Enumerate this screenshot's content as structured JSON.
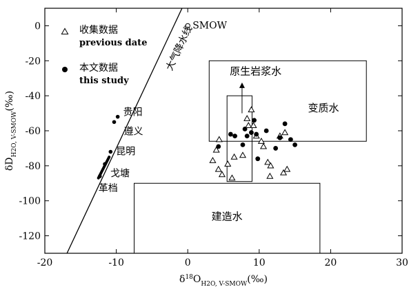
{
  "chart_data": {
    "type": "scatter",
    "xlim": [
      -20,
      30
    ],
    "ylim": [
      -130,
      10
    ],
    "x_ticks": [
      -20,
      -10,
      0,
      10,
      20,
      30
    ],
    "y_ticks": [
      0,
      -20,
      -40,
      -60,
      -80,
      -100,
      -120
    ],
    "xlabel": {
      "main": "δ",
      "sup": "18",
      "mid": "O",
      "sub": "H2O, V-SMOW",
      "unit": "(‰)"
    },
    "ylabel": {
      "main": "δD",
      "sub": "H2O, V-SMOW",
      "unit": "(‰)"
    },
    "grid": false,
    "legend": {
      "placement": "top-left",
      "entries": [
        {
          "cn": "收集数据",
          "en": "previous date",
          "marker": "open-triangle"
        },
        {
          "cn": "本文数据",
          "en": "this study",
          "marker": "filled-circle"
        }
      ]
    },
    "meteoric_water_line": {
      "label": "大气降水线",
      "x": [
        -16.9,
        -0.8
      ],
      "y": [
        -130,
        10
      ]
    },
    "smow": {
      "label": "SMOW",
      "x": 0,
      "y": 0
    },
    "line_points": [
      {
        "label": "贵阳",
        "x": -9.8,
        "y": -52
      },
      {
        "label": "遵义",
        "x": -10.3,
        "y": -55
      },
      {
        "label": "昆明",
        "x": -10.8,
        "y": -72
      },
      {
        "label": "戈塘",
        "x": -11.6,
        "y": -79
      },
      {
        "label": "革档",
        "x": -12.3,
        "y": -86
      }
    ],
    "regions": [
      {
        "label": "原生岩浆水",
        "x": [
          5.5,
          9
        ],
        "y": [
          -89,
          -40
        ]
      },
      {
        "label": "变质水",
        "x": [
          3,
          25
        ],
        "y": [
          -66,
          -20
        ]
      },
      {
        "label": "建造水",
        "x": [
          -7.5,
          18.5
        ],
        "y": [
          -130,
          -90
        ]
      }
    ],
    "series": [
      {
        "name": "previous date",
        "marker": "open-triangle",
        "points": [
          {
            "x": 4.4,
            "y": -65
          },
          {
            "x": 4.0,
            "y": -71
          },
          {
            "x": 3.5,
            "y": -77
          },
          {
            "x": 4.3,
            "y": -82
          },
          {
            "x": 4.8,
            "y": -85
          },
          {
            "x": 5.6,
            "y": -79
          },
          {
            "x": 6.2,
            "y": -87
          },
          {
            "x": 6.5,
            "y": -75
          },
          {
            "x": 7.7,
            "y": -74
          },
          {
            "x": 8.5,
            "y": -57
          },
          {
            "x": 8.3,
            "y": -53
          },
          {
            "x": 8.9,
            "y": -48
          },
          {
            "x": 9.2,
            "y": -57
          },
          {
            "x": 9.6,
            "y": -63
          },
          {
            "x": 10.3,
            "y": -66
          },
          {
            "x": 10.6,
            "y": -69
          },
          {
            "x": 11.2,
            "y": -78
          },
          {
            "x": 11.6,
            "y": -80
          },
          {
            "x": 11.5,
            "y": -86
          },
          {
            "x": 12.9,
            "y": -63
          },
          {
            "x": 13.6,
            "y": -61
          },
          {
            "x": 13.4,
            "y": -84
          },
          {
            "x": 13.9,
            "y": -82
          }
        ]
      },
      {
        "name": "this study",
        "marker": "filled-circle",
        "points": [
          {
            "x": 4.3,
            "y": -69
          },
          {
            "x": 6.0,
            "y": -62
          },
          {
            "x": 6.6,
            "y": -63
          },
          {
            "x": 7.7,
            "y": -68
          },
          {
            "x": 8.0,
            "y": -59
          },
          {
            "x": 8.3,
            "y": -63
          },
          {
            "x": 8.9,
            "y": -61
          },
          {
            "x": 9.3,
            "y": -54
          },
          {
            "x": 9.6,
            "y": -62
          },
          {
            "x": 9.8,
            "y": -76
          },
          {
            "x": 11.0,
            "y": -60
          },
          {
            "x": 12.3,
            "y": -70
          },
          {
            "x": 12.9,
            "y": -64
          },
          {
            "x": 13.6,
            "y": -56
          },
          {
            "x": 14.4,
            "y": -65
          },
          {
            "x": 15.0,
            "y": -68
          }
        ]
      }
    ]
  }
}
